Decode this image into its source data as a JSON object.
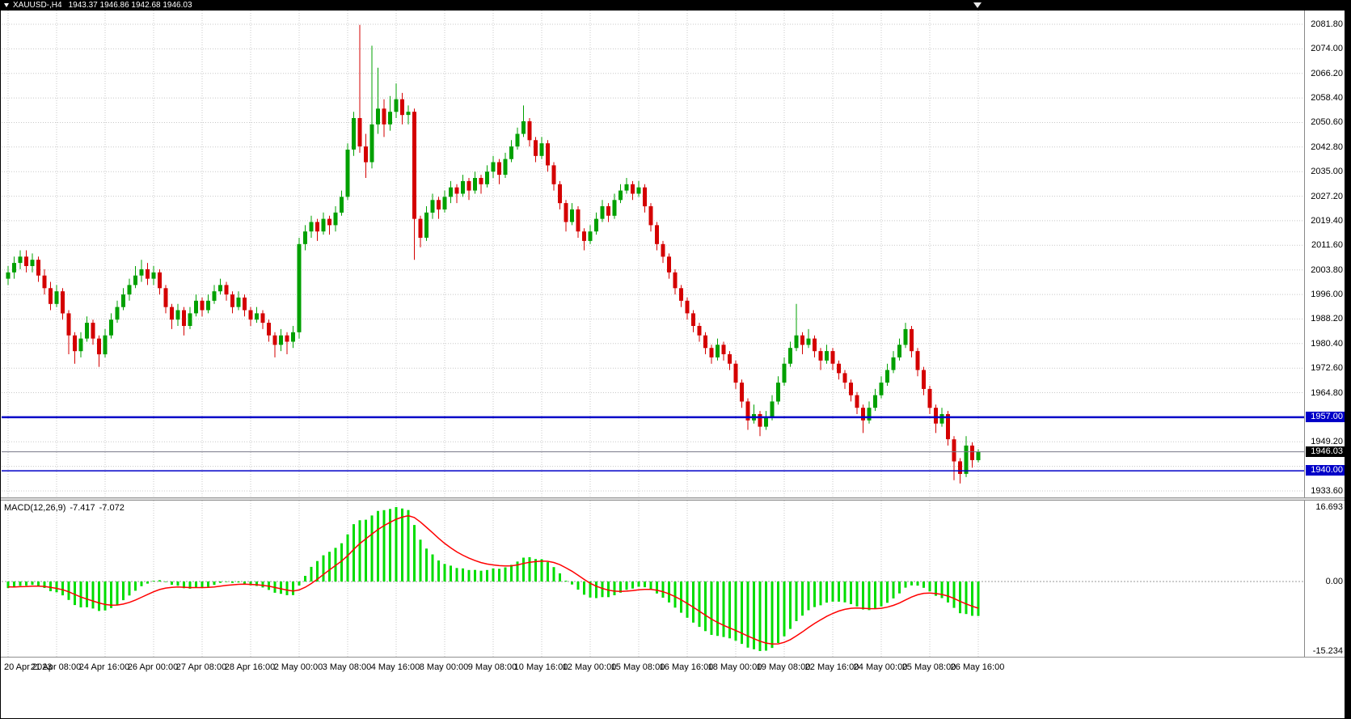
{
  "title_bar": {
    "symbol_period": "XAUUSD-,H4",
    "ohlc_values": "1943.37 1946.86 1942.68 1946.03"
  },
  "price_axis": {
    "labels": [
      {
        "text": "2081.80",
        "price": 2081.8
      },
      {
        "text": "2074.00",
        "price": 2074.0
      },
      {
        "text": "2066.20",
        "price": 2066.2
      },
      {
        "text": "2058.40",
        "price": 2058.4
      },
      {
        "text": "2050.60",
        "price": 2050.6
      },
      {
        "text": "2042.80",
        "price": 2042.8
      },
      {
        "text": "2035.00",
        "price": 2035.0
      },
      {
        "text": "2027.20",
        "price": 2027.2
      },
      {
        "text": "2019.40",
        "price": 2019.4
      },
      {
        "text": "2011.60",
        "price": 2011.6
      },
      {
        "text": "2003.80",
        "price": 2003.8
      },
      {
        "text": "1996.00",
        "price": 1996.0
      },
      {
        "text": "1988.20",
        "price": 1988.2
      },
      {
        "text": "1980.40",
        "price": 1980.4
      },
      {
        "text": "1972.60",
        "price": 1972.6
      },
      {
        "text": "1964.80",
        "price": 1964.8
      },
      {
        "text": "1949.20",
        "price": 1949.2
      },
      {
        "text": "1933.60",
        "price": 1933.6
      }
    ],
    "line_badges": [
      {
        "text": "1957.00",
        "price": 1957.0,
        "color": "#0000c8"
      },
      {
        "text": "1940.00",
        "price": 1940.0,
        "color": "#0000c8"
      }
    ],
    "current_badge": {
      "text": "1946.03",
      "price": 1946.03,
      "bg": "#000000"
    }
  },
  "time_axis": {
    "labels": [
      {
        "text": "20 Apr 2023",
        "candle": 0
      },
      {
        "text": "21 Apr 08:00",
        "candle": 8
      },
      {
        "text": "24 Apr 16:00",
        "candle": 16
      },
      {
        "text": "26 Apr 00:00",
        "candle": 24
      },
      {
        "text": "27 Apr 08:00",
        "candle": 32
      },
      {
        "text": "28 Apr 16:00",
        "candle": 40
      },
      {
        "text": "2 May 00:00",
        "candle": 48
      },
      {
        "text": "3 May 08:00",
        "candle": 56
      },
      {
        "text": "4 May 16:00",
        "candle": 64
      },
      {
        "text": "8 May 00:00",
        "candle": 72
      },
      {
        "text": "9 May 08:00",
        "candle": 80
      },
      {
        "text": "10 May 16:00",
        "candle": 88
      },
      {
        "text": "12 May 00:00",
        "candle": 96
      },
      {
        "text": "15 May 08:00",
        "candle": 104
      },
      {
        "text": "16 May 16:00",
        "candle": 112
      },
      {
        "text": "18 May 00:00",
        "candle": 120
      },
      {
        "text": "19 May 08:00",
        "candle": 128
      },
      {
        "text": "22 May 16:00",
        "candle": 136
      },
      {
        "text": "24 May 00:00",
        "candle": 144
      },
      {
        "text": "25 May 08:00",
        "candle": 152
      },
      {
        "text": "26 May 16:00",
        "candle": 160
      }
    ]
  },
  "macd": {
    "title": "MACD(12,26,9)",
    "main_value": "-7.417",
    "signal_value": "-7.072",
    "fast_ema": 12,
    "slow_ema": 26,
    "signal_ema": 9,
    "warmup": {
      "start": 2010,
      "end": 2003.5,
      "bars": 20
    },
    "scale_labels": [
      {
        "text": "16.693",
        "pos": "top"
      },
      {
        "text": "0.00",
        "pos": "zero"
      },
      {
        "text": "-15.234",
        "pos": "bottom"
      }
    ]
  },
  "lines": {
    "horizontal": [
      {
        "price": 1957.0,
        "width": 2.5
      },
      {
        "price": 1940.0,
        "width": 1.5
      }
    ],
    "current_price": 1946.03
  },
  "colors": {
    "bull": "#00a000",
    "bear": "#d40000",
    "macd_histogram": "#00dd00",
    "macd_signal": "#ff0000",
    "hline": "#0000c8",
    "current_line": "#777788",
    "grid": "#c8c8c8",
    "titlebar_bg": "#000000",
    "background": "#ffffff"
  },
  "chart_data": {
    "type": "candlestick",
    "symbol": "XAUUSD-",
    "timeframe": "H4",
    "title": "XAUUSD-,H4 1943.37 1946.86 1942.68 1946.03",
    "price_grid": {
      "min": 1933.6,
      "max": 2081.8,
      "step": 7.8
    },
    "current_bar": {
      "open": 1943.37,
      "high": 1946.86,
      "low": 1942.68,
      "close": 1946.03
    },
    "support_resistance": [
      1957.0,
      1940.0
    ],
    "ohlc_format": [
      "open",
      "high",
      "low",
      "close"
    ],
    "candles": [
      [
        2001,
        2005,
        1999,
        2003
      ],
      [
        2003,
        2008,
        2001,
        2006
      ],
      [
        2006,
        2010,
        2004,
        2008
      ],
      [
        2008,
        2010,
        2003,
        2005
      ],
      [
        2005,
        2009,
        2003,
        2007
      ],
      [
        2007,
        2008,
        2000,
        2002
      ],
      [
        2002,
        2004,
        1996,
        1998
      ],
      [
        1998,
        2000,
        1991,
        1993
      ],
      [
        1993,
        1999,
        1992,
        1997
      ],
      [
        1997,
        1998,
        1988,
        1990
      ],
      [
        1990,
        1991,
        1977,
        1983
      ],
      [
        1983,
        1984,
        1974,
        1978
      ],
      [
        1978,
        1984,
        1976,
        1982
      ],
      [
        1982,
        1989,
        1981,
        1987
      ],
      [
        1987,
        1988,
        1980,
        1982
      ],
      [
        1982,
        1983,
        1973,
        1977
      ],
      [
        1977,
        1985,
        1976,
        1983
      ],
      [
        1983,
        1990,
        1982,
        1988
      ],
      [
        1988,
        1994,
        1987,
        1992
      ],
      [
        1992,
        1998,
        1991,
        1996
      ],
      [
        1996,
        2001,
        1994,
        1999
      ],
      [
        1999,
        2005,
        1998,
        2002
      ],
      [
        2002,
        2007,
        2000,
        2004
      ],
      [
        2004,
        2006,
        1999,
        2001
      ],
      [
        2001,
        2005,
        1999,
        2003
      ],
      [
        2003,
        2004,
        1996,
        1998
      ],
      [
        1998,
        1999,
        1990,
        1992
      ],
      [
        1992,
        1993,
        1985,
        1988
      ],
      [
        1988,
        1993,
        1986,
        1991
      ],
      [
        1991,
        1992,
        1983,
        1986
      ],
      [
        1986,
        1992,
        1985,
        1990
      ],
      [
        1990,
        1996,
        1989,
        1994
      ],
      [
        1994,
        1995,
        1989,
        1991
      ],
      [
        1991,
        1996,
        1990,
        1994
      ],
      [
        1994,
        1999,
        1993,
        1997
      ],
      [
        1997,
        2001,
        1996,
        1999
      ],
      [
        1999,
        2000,
        1994,
        1996
      ],
      [
        1996,
        1997,
        1990,
        1992
      ],
      [
        1992,
        1997,
        1991,
        1995
      ],
      [
        1995,
        1996,
        1989,
        1991
      ],
      [
        1991,
        1992,
        1986,
        1988
      ],
      [
        1988,
        1992,
        1987,
        1990
      ],
      [
        1990,
        1991,
        1985,
        1987
      ],
      [
        1987,
        1988,
        1981,
        1983
      ],
      [
        1983,
        1984,
        1976,
        1980
      ],
      [
        1980,
        1985,
        1978,
        1983
      ],
      [
        1983,
        1984,
        1977,
        1981
      ],
      [
        1981,
        1986,
        1979,
        1984
      ],
      [
        1984,
        2014,
        1982,
        2012
      ],
      [
        2012,
        2018,
        2010,
        2016
      ],
      [
        2016,
        2021,
        2014,
        2019
      ],
      [
        2019,
        2020,
        2013,
        2016
      ],
      [
        2016,
        2022,
        2015,
        2020
      ],
      [
        2020,
        2021,
        2015,
        2018
      ],
      [
        2018,
        2024,
        2016,
        2022
      ],
      [
        2022,
        2029,
        2021,
        2027
      ],
      [
        2027,
        2044,
        2026,
        2042
      ],
      [
        2042,
        2054,
        2040,
        2052
      ],
      [
        2052,
        2081.6,
        2041,
        2043
      ],
      [
        2043,
        2047,
        2033,
        2038
      ],
      [
        2038,
        2075,
        2036,
        2050
      ],
      [
        2050,
        2068,
        2047,
        2055
      ],
      [
        2055,
        2058,
        2046,
        2050
      ],
      [
        2050,
        2059,
        2048,
        2054
      ],
      [
        2054,
        2063,
        2052,
        2058
      ],
      [
        2058,
        2060,
        2050,
        2053
      ],
      [
        2053,
        2056,
        2050,
        2054
      ],
      [
        2054,
        2055,
        2007,
        2020
      ],
      [
        2020,
        2021,
        2011,
        2014
      ],
      [
        2014,
        2024,
        2013,
        2022
      ],
      [
        2022,
        2028,
        2020,
        2026
      ],
      [
        2026,
        2027,
        2020,
        2023
      ],
      [
        2023,
        2029,
        2022,
        2027
      ],
      [
        2027,
        2032,
        2025,
        2030
      ],
      [
        2030,
        2031,
        2025,
        2028
      ],
      [
        2028,
        2034,
        2027,
        2032
      ],
      [
        2032,
        2033,
        2026,
        2029
      ],
      [
        2029,
        2035,
        2028,
        2033
      ],
      [
        2033,
        2034,
        2028,
        2031
      ],
      [
        2031,
        2037,
        2030,
        2035
      ],
      [
        2035,
        2040,
        2033,
        2038
      ],
      [
        2038,
        2039,
        2031,
        2034
      ],
      [
        2034,
        2041,
        2033,
        2039
      ],
      [
        2039,
        2045,
        2038,
        2043
      ],
      [
        2043,
        2049,
        2042,
        2047
      ],
      [
        2047,
        2056,
        2046,
        2051
      ],
      [
        2051,
        2052,
        2043,
        2045
      ],
      [
        2045,
        2046,
        2038,
        2040
      ],
      [
        2040,
        2046,
        2039,
        2044
      ],
      [
        2044,
        2045,
        2035,
        2037
      ],
      [
        2037,
        2038,
        2029,
        2031
      ],
      [
        2031,
        2032,
        2023,
        2025
      ],
      [
        2025,
        2026,
        2016,
        2019
      ],
      [
        2019,
        2025,
        2018,
        2023
      ],
      [
        2023,
        2024,
        2014,
        2016
      ],
      [
        2016,
        2017,
        2010,
        2013
      ],
      [
        2013,
        2018,
        2012,
        2016
      ],
      [
        2016,
        2022,
        2015,
        2020
      ],
      [
        2020,
        2026,
        2019,
        2024
      ],
      [
        2024,
        2025,
        2019,
        2021
      ],
      [
        2021,
        2028,
        2020,
        2026
      ],
      [
        2026,
        2031,
        2025,
        2029
      ],
      [
        2029,
        2033,
        2028,
        2031
      ],
      [
        2031,
        2032,
        2026,
        2028
      ],
      [
        2028,
        2032,
        2027,
        2030
      ],
      [
        2030,
        2031,
        2022,
        2024
      ],
      [
        2024,
        2025,
        2016,
        2018
      ],
      [
        2018,
        2019,
        2010,
        2012
      ],
      [
        2012,
        2013,
        2006,
        2008
      ],
      [
        2008,
        2009,
        2001,
        2003
      ],
      [
        2003,
        2004,
        1996,
        1998
      ],
      [
        1998,
        1999,
        1992,
        1994
      ],
      [
        1994,
        1995,
        1988,
        1990
      ],
      [
        1990,
        1991,
        1984,
        1986
      ],
      [
        1986,
        1987,
        1981,
        1983
      ],
      [
        1983,
        1984,
        1977,
        1979
      ],
      [
        1979,
        1980,
        1974,
        1976
      ],
      [
        1976,
        1982,
        1975,
        1980
      ],
      [
        1980,
        1981,
        1975,
        1977
      ],
      [
        1977,
        1978,
        1972,
        1974
      ],
      [
        1974,
        1975,
        1966,
        1968
      ],
      [
        1968,
        1969,
        1960,
        1962
      ],
      [
        1962,
        1963,
        1953,
        1956
      ],
      [
        1956,
        1961,
        1955,
        1958
      ],
      [
        1958,
        1959,
        1951,
        1954
      ],
      [
        1954,
        1959,
        1953,
        1957
      ],
      [
        1957,
        1964,
        1956,
        1962
      ],
      [
        1962,
        1970,
        1961,
        1968
      ],
      [
        1968,
        1976,
        1967,
        1974
      ],
      [
        1974,
        1981,
        1973,
        1979
      ],
      [
        1979,
        1993,
        1978,
        1983
      ],
      [
        1983,
        1984,
        1977,
        1980
      ],
      [
        1980,
        1985,
        1979,
        1982
      ],
      [
        1982,
        1983,
        1976,
        1978
      ],
      [
        1978,
        1979,
        1972,
        1975
      ],
      [
        1975,
        1980,
        1974,
        1978
      ],
      [
        1978,
        1979,
        1972,
        1974
      ],
      [
        1974,
        1975,
        1969,
        1971
      ],
      [
        1971,
        1972,
        1966,
        1968
      ],
      [
        1968,
        1969,
        1962,
        1964
      ],
      [
        1964,
        1965,
        1958,
        1960
      ],
      [
        1960,
        1961,
        1952,
        1956
      ],
      [
        1956,
        1962,
        1955,
        1960
      ],
      [
        1960,
        1966,
        1959,
        1964
      ],
      [
        1964,
        1970,
        1963,
        1968
      ],
      [
        1968,
        1974,
        1967,
        1972
      ],
      [
        1972,
        1978,
        1971,
        1976
      ],
      [
        1976,
        1982,
        1975,
        1980
      ],
      [
        1980,
        1987,
        1979,
        1985
      ],
      [
        1985,
        1986,
        1976,
        1978
      ],
      [
        1978,
        1979,
        1970,
        1972
      ],
      [
        1972,
        1973,
        1964,
        1966
      ],
      [
        1966,
        1967,
        1958,
        1960
      ],
      [
        1960,
        1961,
        1952,
        1955
      ],
      [
        1955,
        1960,
        1954,
        1958
      ],
      [
        1958,
        1959,
        1948,
        1950
      ],
      [
        1950,
        1951,
        1937,
        1943
      ],
      [
        1943,
        1944,
        1936,
        1939
      ],
      [
        1939,
        1951,
        1938,
        1948
      ],
      [
        1948,
        1949,
        1941,
        1943.37
      ],
      [
        1943.37,
        1946.86,
        1942.68,
        1946.03
      ]
    ],
    "macd_panel": {
      "indicator": "MACD(12,26,9)",
      "current_main": -7.417,
      "current_signal": -7.072,
      "scale_max": 16.693,
      "scale_min": -15.234
    }
  }
}
